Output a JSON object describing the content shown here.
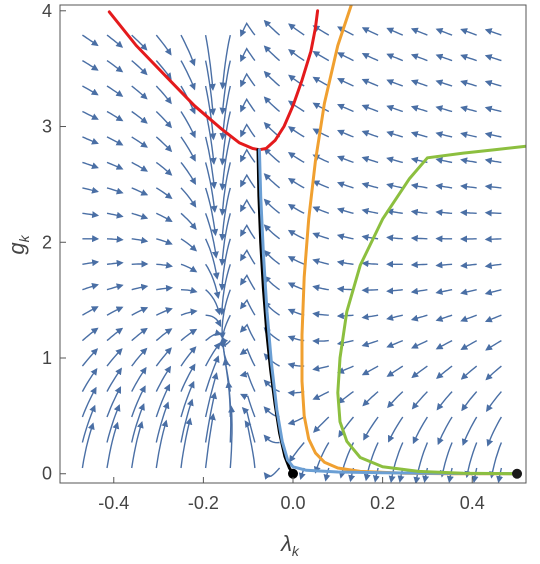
{
  "chart_data": {
    "type": "stream-plot",
    "xlabel": "λ",
    "xlabel_sub": "k",
    "ylabel": "g",
    "ylabel_sub": "k",
    "xlim": [
      -0.52,
      0.52
    ],
    "ylim": [
      -0.08,
      4.05
    ],
    "x_ticks": [
      "-0.4",
      "-0.2",
      "0.0",
      "0.2",
      "0.4"
    ],
    "x_tick_values": [
      -0.4,
      -0.2,
      0.0,
      0.2,
      0.4
    ],
    "y_ticks": [
      "0",
      "1",
      "2",
      "3",
      "4"
    ],
    "y_tick_values": [
      0,
      1,
      2,
      3,
      4
    ],
    "stream_color": "#4a6fa5",
    "points": [
      {
        "name": "gaussian-fixed-point",
        "x": 0.0,
        "y": 0.0,
        "color": "#000000"
      },
      {
        "name": "infrared-point",
        "x": 0.5,
        "y": 0.0,
        "color": "#1a1a1a"
      }
    ],
    "series": [
      {
        "color": "#e41a1c",
        "x": [
          -0.41,
          -0.35,
          -0.28,
          -0.22,
          -0.16,
          -0.12,
          -0.09,
          -0.075,
          -0.06,
          -0.04,
          -0.02,
          0.0,
          0.02,
          0.04,
          0.05,
          0.055
        ],
        "y": [
          3.99,
          3.7,
          3.42,
          3.18,
          2.98,
          2.86,
          2.81,
          2.8,
          2.81,
          2.88,
          3.0,
          3.18,
          3.4,
          3.65,
          3.85,
          4.0
        ]
      },
      {
        "color": "#000000",
        "x": [
          -0.078,
          -0.076,
          -0.072,
          -0.066,
          -0.058,
          -0.05,
          -0.04,
          -0.03,
          -0.018,
          -0.008,
          0.0
        ],
        "y": [
          2.8,
          2.4,
          2.0,
          1.6,
          1.2,
          0.9,
          0.6,
          0.35,
          0.15,
          0.05,
          0.0
        ]
      },
      {
        "color": "#f0a030",
        "x": [
          0.13,
          0.1,
          0.07,
          0.05,
          0.035,
          0.025,
          0.02,
          0.02,
          0.025,
          0.035,
          0.05,
          0.07,
          0.1,
          0.15,
          0.25,
          0.35,
          0.5
        ],
        "y": [
          4.05,
          3.7,
          3.2,
          2.7,
          2.2,
          1.7,
          1.2,
          0.8,
          0.5,
          0.3,
          0.18,
          0.1,
          0.05,
          0.02,
          0.005,
          0.0,
          0.0
        ]
      },
      {
        "color": "#6b9fd4",
        "x": [
          -0.075,
          -0.072,
          -0.066,
          -0.058,
          -0.048,
          -0.036,
          -0.024,
          -0.012,
          0.0,
          0.03,
          0.1,
          0.2,
          0.3,
          0.4,
          0.5
        ],
        "y": [
          2.8,
          2.4,
          1.9,
          1.4,
          0.95,
          0.55,
          0.28,
          0.12,
          0.06,
          0.03,
          0.015,
          0.008,
          0.004,
          0.002,
          0.0
        ]
      },
      {
        "color": "#8cbf3f",
        "x": [
          0.52,
          0.45,
          0.38,
          0.3,
          0.26,
          0.2,
          0.15,
          0.12,
          0.105,
          0.1,
          0.105,
          0.12,
          0.15,
          0.2,
          0.28,
          0.38,
          0.5
        ],
        "y": [
          2.83,
          2.8,
          2.77,
          2.73,
          2.55,
          2.2,
          1.8,
          1.4,
          1.0,
          0.7,
          0.45,
          0.28,
          0.14,
          0.06,
          0.02,
          0.005,
          0.0
        ]
      }
    ]
  }
}
